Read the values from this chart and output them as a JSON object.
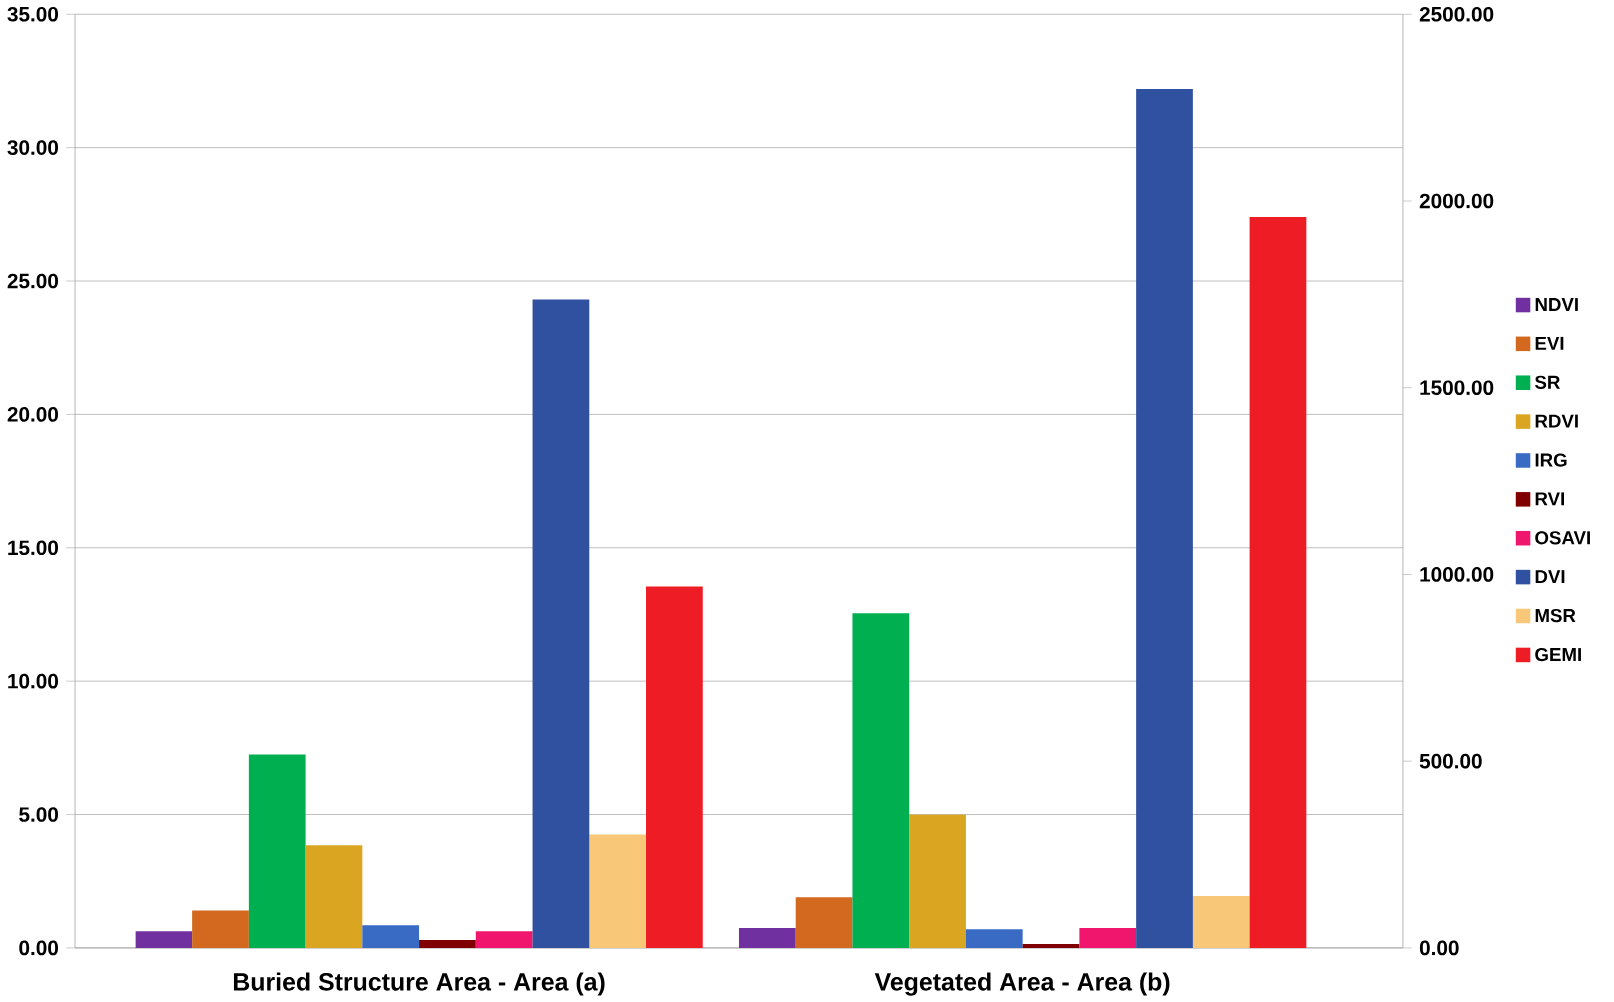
{
  "chart_data": {
    "type": "bar",
    "categories": [
      "Buried Structure Area - Area (a)",
      "Vegetated Area - Area (b)"
    ],
    "series": [
      {
        "name": "NDVI",
        "color": "#7030a0",
        "values": [
          0.62,
          0.75
        ]
      },
      {
        "name": "EVI",
        "color": "#d2691e",
        "values": [
          1.4,
          1.9
        ]
      },
      {
        "name": "SR",
        "color": "#00b050",
        "values": [
          7.25,
          12.55
        ]
      },
      {
        "name": "RDVI",
        "color": "#daa520",
        "values": [
          3.85,
          5.0
        ]
      },
      {
        "name": "IRG",
        "color": "#3a6bc4",
        "values": [
          0.85,
          0.7
        ]
      },
      {
        "name": "RVI",
        "color": "#800000",
        "values": [
          0.3,
          0.15
        ]
      },
      {
        "name": "OSAVI",
        "color": "#f0166e",
        "values": [
          0.62,
          0.75
        ]
      },
      {
        "name": "DVI",
        "color": "#3050a0",
        "values": [
          1736,
          2300
        ],
        "axis": "y2"
      },
      {
        "name": "MSR",
        "color": "#f8c878",
        "values": [
          4.25,
          1.95
        ]
      },
      {
        "name": "GEMI",
        "color": "#ee1c24",
        "values": [
          968,
          1957
        ],
        "axis": "y2"
      }
    ],
    "ylim": [
      0,
      35
    ],
    "yticks": [
      {
        "value": 0,
        "label": "0.00"
      },
      {
        "value": 5,
        "label": "5.00"
      },
      {
        "value": 10,
        "label": "10.00"
      },
      {
        "value": 15,
        "label": "15.00"
      },
      {
        "value": 20,
        "label": "20.00"
      },
      {
        "value": 25,
        "label": "25.00"
      },
      {
        "value": 30,
        "label": "30.00"
      },
      {
        "value": 35,
        "label": "35.00"
      }
    ],
    "y2lim": [
      0,
      2500
    ],
    "y2ticks": [
      {
        "value": 0,
        "label": "0.00"
      },
      {
        "value": 500,
        "label": "500.00"
      },
      {
        "value": 1000,
        "label": "1000.00"
      },
      {
        "value": 1500,
        "label": "1500.00"
      },
      {
        "value": 2000,
        "label": "2000.00"
      },
      {
        "value": 2500,
        "label": "2500.00"
      }
    ],
    "grid": "y",
    "legend": "right"
  }
}
